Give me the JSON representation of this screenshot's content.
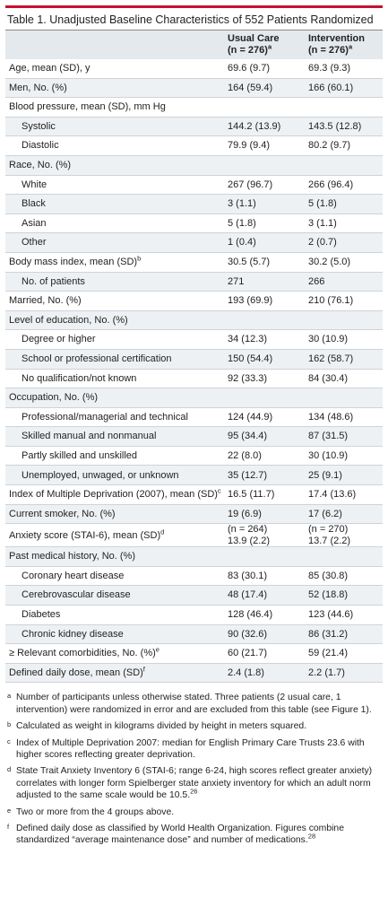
{
  "title": "Table 1. Unadjusted Baseline Characteristics of 552 Patients Randomized",
  "header": {
    "usual": {
      "name": "Usual Care",
      "n": "(n = 276)",
      "sup": "a"
    },
    "intervention": {
      "name": "Intervention",
      "n": "(n = 276)",
      "sup": "a"
    }
  },
  "rows": [
    {
      "label": "Age, mean (SD), y",
      "indent": false,
      "usual": "69.6 (9.7)",
      "intervention": "69.3 (9.3)"
    },
    {
      "label": "Men, No. (%)",
      "indent": false,
      "usual": "164 (59.4)",
      "intervention": "166 (60.1)"
    },
    {
      "label": "Blood pressure, mean (SD), mm Hg",
      "indent": false
    },
    {
      "label": "Systolic",
      "indent": true,
      "usual": "144.2 (13.9)",
      "intervention": "143.5 (12.8)"
    },
    {
      "label": "Diastolic",
      "indent": true,
      "usual": "79.9 (9.4)",
      "intervention": "80.2 (9.7)"
    },
    {
      "label": "Race, No. (%)",
      "indent": false
    },
    {
      "label": "White",
      "indent": true,
      "usual": "267 (96.7)",
      "intervention": "266 (96.4)"
    },
    {
      "label": "Black",
      "indent": true,
      "usual": "3 (1.1)",
      "intervention": "5 (1.8)"
    },
    {
      "label": "Asian",
      "indent": true,
      "usual": "5 (1.8)",
      "intervention": "3 (1.1)"
    },
    {
      "label": "Other",
      "indent": true,
      "usual": "1 (0.4)",
      "intervention": "2 (0.7)"
    },
    {
      "label": "Body mass index, mean (SD)",
      "sup": "b",
      "indent": false,
      "usual": "30.5 (5.7)",
      "intervention": "30.2 (5.0)"
    },
    {
      "label": "No. of patients",
      "indent": true,
      "usual": "271",
      "intervention": "266"
    },
    {
      "label": "Married, No. (%)",
      "indent": false,
      "usual": "193 (69.9)",
      "intervention": "210 (76.1)"
    },
    {
      "label": "Level of education, No. (%)",
      "indent": false
    },
    {
      "label": "Degree or higher",
      "indent": true,
      "usual": "34 (12.3)",
      "intervention": "30 (10.9)"
    },
    {
      "label": "School or professional certification",
      "indent": true,
      "usual": "150 (54.4)",
      "intervention": "162 (58.7)"
    },
    {
      "label": "No qualification/not known",
      "indent": true,
      "usual": "92 (33.3)",
      "intervention": "84 (30.4)"
    },
    {
      "label": "Occupation, No. (%)",
      "indent": false
    },
    {
      "label": "Professional/managerial and technical",
      "indent": true,
      "usual": "124 (44.9)",
      "intervention": "134 (48.6)"
    },
    {
      "label": "Skilled manual and nonmanual",
      "indent": true,
      "usual": "95 (34.4)",
      "intervention": "87 (31.5)"
    },
    {
      "label": "Partly skilled and unskilled",
      "indent": true,
      "usual": "22 (8.0)",
      "intervention": "30 (10.9)"
    },
    {
      "label": "Unemployed, unwaged, or unknown",
      "indent": true,
      "usual": "35 (12.7)",
      "intervention": "25 (9.1)"
    },
    {
      "label": "Index of Multiple Deprivation (2007), mean (SD)",
      "sup": "c",
      "indent": false,
      "usual": "16.5 (11.7)",
      "intervention": "17.4 (13.6)"
    },
    {
      "label": "Current smoker, No. (%)",
      "indent": false,
      "usual": "19 (6.9)",
      "intervention": "17 (6.2)"
    },
    {
      "label": "Anxiety score (STAI-6), mean (SD)",
      "sup": "d",
      "indent": false,
      "usual": [
        "(n = 264)",
        "13.9 (2.2)"
      ],
      "intervention": [
        "(n = 270)",
        "13.7 (2.2)"
      ]
    },
    {
      "label": "Past medical history, No. (%)",
      "indent": false
    },
    {
      "label": "Coronary heart disease",
      "indent": true,
      "usual": "83 (30.1)",
      "intervention": "85 (30.8)"
    },
    {
      "label": "Cerebrovascular disease",
      "indent": true,
      "usual": "48 (17.4)",
      "intervention": "52 (18.8)"
    },
    {
      "label": "Diabetes",
      "indent": true,
      "usual": "128 (46.4)",
      "intervention": "123 (44.6)"
    },
    {
      "label": "Chronic kidney disease",
      "indent": true,
      "usual": "90 (32.6)",
      "intervention": "86 (31.2)"
    },
    {
      "label": "≥ Relevant comorbidities, No. (%)",
      "sup": "e",
      "indent": false,
      "usual": "60 (21.7)",
      "intervention": "59 (21.4)"
    },
    {
      "label": "Defined daily dose, mean (SD)",
      "sup": "f",
      "indent": false,
      "usual": "2.4 (1.8)",
      "intervention": "2.2 (1.7)"
    }
  ],
  "footnotes": [
    {
      "mark": "a",
      "text": "Number of participants unless otherwise stated. Three patients (2 usual care, 1 intervention) were randomized in error and are excluded from this table (see Figure 1)."
    },
    {
      "mark": "b",
      "text": "Calculated as weight in kilograms divided by height in meters squared."
    },
    {
      "mark": "c",
      "text": "Index of Multiple Deprivation 2007: median for English Primary Care Trusts 23.6 with higher scores reflecting greater deprivation."
    },
    {
      "mark": "d",
      "text": "State Trait Anxiety Inventory 6 (STAI-6; range 6-24, high scores reflect greater anxiety) correlates with longer form Spielberger state anxiety inventory for which an adult norm adjusted to the same scale would be 10.5.",
      "ref": "26"
    },
    {
      "mark": "e",
      "text": "Two or more from the 4 groups above."
    },
    {
      "mark": "f",
      "text": "Defined daily dose as classified by World Health Organization. Figures combine standardized “average maintenance dose” and number of medications.",
      "ref": "28"
    }
  ]
}
